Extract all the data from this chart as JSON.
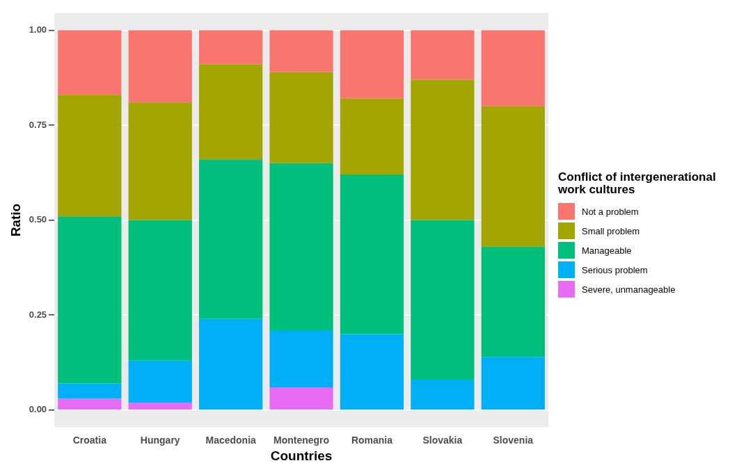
{
  "chart_data": {
    "type": "bar",
    "stacked": true,
    "xlabel": "Countries",
    "ylabel": "Ratio",
    "legend_title": "Conflict of intergenerational work cultures",
    "legend": "right",
    "categories": [
      "Croatia",
      "Hungary",
      "Macedonia",
      "Montenegro",
      "Romania",
      "Slovakia",
      "Slovenia"
    ],
    "series": [
      {
        "name": "Severe, unmanageable",
        "color": "#e76bf3",
        "values": [
          0.03,
          0.02,
          0,
          0.06,
          0,
          0,
          0
        ]
      },
      {
        "name": "Serious problem",
        "color": "#00b0f6",
        "values": [
          0.04,
          0.11,
          0.24,
          0.15,
          0.2,
          0.08,
          0.14
        ]
      },
      {
        "name": "Manageable",
        "color": "#00bf7d",
        "values": [
          0.44,
          0.37,
          0.42,
          0.44,
          0.42,
          0.42,
          0.29
        ]
      },
      {
        "name": "Small problem",
        "color": "#a3a500",
        "values": [
          0.32,
          0.31,
          0.25,
          0.24,
          0.2,
          0.37,
          0.37
        ]
      },
      {
        "name": "Not a problem",
        "color": "#f8766d",
        "values": [
          0.17,
          0.19,
          0.09,
          0.11,
          0.18,
          0.13,
          0.2
        ]
      }
    ],
    "ylim": [
      -0.045,
      1.045
    ],
    "yticks": [
      {
        "value": 0,
        "label": "0.00"
      },
      {
        "value": 0.25,
        "label": "0.25"
      },
      {
        "value": 0.5,
        "label": "0.50"
      },
      {
        "value": 0.75,
        "label": "0.75"
      },
      {
        "value": 1,
        "label": "1.00"
      }
    ],
    "grid": "y"
  }
}
